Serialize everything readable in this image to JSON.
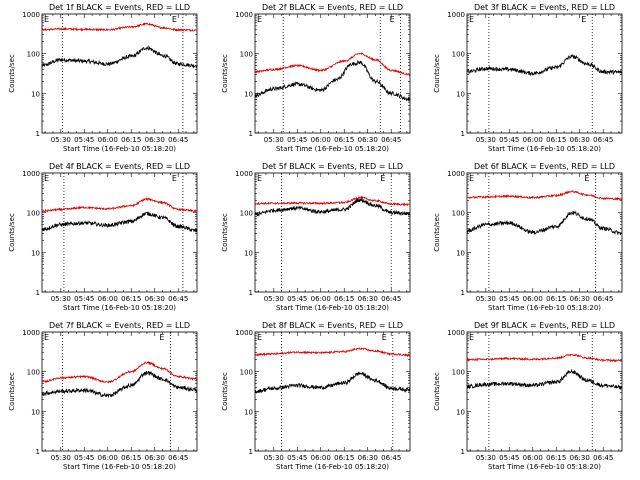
{
  "chart_data": {
    "type": "line",
    "grid": false,
    "y_scale": "log",
    "ylim": [
      1,
      1000
    ],
    "ylabel": "Counts/sec",
    "xlabel": "Start Time (16-Feb-10 05:18:20)",
    "x_tick_labels": [
      "05:30",
      "05:45",
      "06:00",
      "06:15",
      "06:30",
      "06:45"
    ],
    "y_tick_labels": [
      "1",
      "10",
      "100",
      "1000"
    ],
    "marker_letters": [
      "E",
      "E"
    ],
    "series_colors": {
      "events": "#000000",
      "lld": "#dd0000"
    },
    "panels": [
      {
        "title": "Det 1f BLACK = Events, RED = LLD",
        "vlines": [
          "05:31",
          "06:48"
        ],
        "series": [
          {
            "key": "events",
            "x": [
              "05:18",
              "05:30",
              "05:45",
              "06:00",
              "06:15",
              "06:25",
              "06:35",
              "06:45",
              "06:57"
            ],
            "y": [
              50,
              70,
              65,
              55,
              85,
              140,
              90,
              55,
              50
            ]
          },
          {
            "key": "lld",
            "x": [
              "05:18",
              "05:30",
              "05:45",
              "06:00",
              "06:15",
              "06:25",
              "06:35",
              "06:45",
              "06:57"
            ],
            "y": [
              400,
              420,
              410,
              400,
              470,
              560,
              450,
              400,
              390
            ]
          }
        ]
      },
      {
        "title": "Det 2f BLACK = Events, RED = LLD",
        "vlines": [
          "05:36",
          "06:38",
          "06:51"
        ],
        "series": [
          {
            "key": "events",
            "x": [
              "05:18",
              "05:30",
              "05:45",
              "06:00",
              "06:10",
              "06:20",
              "06:25",
              "06:35",
              "06:45",
              "06:57"
            ],
            "y": [
              9,
              13,
              17,
              12,
              22,
              55,
              60,
              20,
              10,
              7
            ]
          },
          {
            "key": "lld",
            "x": [
              "05:18",
              "05:30",
              "05:45",
              "06:00",
              "06:15",
              "06:25",
              "06:35",
              "06:45",
              "06:57"
            ],
            "y": [
              35,
              40,
              50,
              38,
              65,
              100,
              70,
              38,
              30
            ]
          }
        ]
      },
      {
        "title": "Det 3f BLACK = Events, RED = LLD",
        "vlines": [
          "05:32",
          "06:38"
        ],
        "series": [
          {
            "key": "events",
            "x": [
              "05:18",
              "05:30",
              "05:45",
              "06:00",
              "06:15",
              "06:25",
              "06:35",
              "06:45",
              "06:57"
            ],
            "y": [
              35,
              42,
              40,
              32,
              45,
              85,
              55,
              35,
              34
            ]
          }
        ]
      },
      {
        "title": "Det 4f BLACK = Events, RED = LLD",
        "vlines": [
          "05:32",
          "06:48"
        ],
        "series": [
          {
            "key": "events",
            "x": [
              "05:18",
              "05:30",
              "05:45",
              "06:00",
              "06:15",
              "06:25",
              "06:35",
              "06:45",
              "06:57"
            ],
            "y": [
              38,
              50,
              55,
              48,
              60,
              95,
              75,
              45,
              35
            ]
          },
          {
            "key": "lld",
            "x": [
              "05:18",
              "05:30",
              "05:45",
              "06:00",
              "06:15",
              "06:25",
              "06:35",
              "06:45",
              "06:57"
            ],
            "y": [
              110,
              120,
              135,
              125,
              150,
              220,
              180,
              120,
              110
            ]
          }
        ]
      },
      {
        "title": "Det 5f BLACK = Events, RED = LLD",
        "vlines": [
          "05:35",
          "06:45"
        ],
        "series": [
          {
            "key": "events",
            "x": [
              "05:18",
              "05:30",
              "05:45",
              "06:00",
              "06:15",
              "06:25",
              "06:35",
              "06:45",
              "06:57"
            ],
            "y": [
              90,
              115,
              130,
              105,
              120,
              210,
              150,
              100,
              95
            ]
          },
          {
            "key": "lld",
            "x": [
              "05:18",
              "05:30",
              "05:45",
              "06:00",
              "06:15",
              "06:25",
              "06:35",
              "06:45",
              "06:57"
            ],
            "y": [
              170,
              172,
              175,
              172,
              180,
              240,
              200,
              165,
              160
            ]
          }
        ]
      },
      {
        "title": "Det 6f BLACK = Events, RED = LLD",
        "vlines": [
          "05:32",
          "06:40"
        ],
        "series": [
          {
            "key": "events",
            "x": [
              "05:18",
              "05:30",
              "05:45",
              "06:00",
              "06:15",
              "06:25",
              "06:35",
              "06:45",
              "06:57"
            ],
            "y": [
              35,
              50,
              55,
              32,
              45,
              100,
              70,
              40,
              30
            ]
          },
          {
            "key": "lld",
            "x": [
              "05:18",
              "05:30",
              "05:45",
              "06:00",
              "06:15",
              "06:25",
              "06:35",
              "06:45",
              "06:57"
            ],
            "y": [
              240,
              250,
              260,
              240,
              270,
              340,
              280,
              230,
              220
            ]
          }
        ]
      },
      {
        "title": "Det 7f BLACK = Events, RED = LLD",
        "vlines": [
          "05:31",
          "06:40"
        ],
        "series": [
          {
            "key": "events",
            "x": [
              "05:18",
              "05:30",
              "05:45",
              "06:00",
              "06:15",
              "06:25",
              "06:35",
              "06:45",
              "06:57"
            ],
            "y": [
              28,
              32,
              34,
              25,
              45,
              95,
              65,
              40,
              35
            ]
          },
          {
            "key": "lld",
            "x": [
              "05:18",
              "05:30",
              "05:45",
              "06:00",
              "06:15",
              "06:25",
              "06:35",
              "06:45",
              "06:57"
            ],
            "y": [
              55,
              70,
              75,
              55,
              100,
              170,
              120,
              75,
              65
            ]
          }
        ]
      },
      {
        "title": "Det 8f BLACK = Events, RED = LLD",
        "vlines": [
          "05:35",
          "06:46"
        ],
        "series": [
          {
            "key": "events",
            "x": [
              "05:18",
              "05:30",
              "05:45",
              "06:00",
              "06:15",
              "06:25",
              "06:35",
              "06:45",
              "06:57"
            ],
            "y": [
              32,
              38,
              45,
              40,
              52,
              90,
              60,
              38,
              35
            ]
          },
          {
            "key": "lld",
            "x": [
              "05:18",
              "05:30",
              "05:45",
              "06:00",
              "06:15",
              "06:25",
              "06:35",
              "06:45",
              "06:57"
            ],
            "y": [
              270,
              280,
              310,
              300,
              320,
              380,
              330,
              280,
              260
            ]
          }
        ]
      },
      {
        "title": "Det 9f BLACK = Events, RED = LLD",
        "vlines": [
          "05:32",
          "06:38"
        ],
        "series": [
          {
            "key": "events",
            "x": [
              "05:18",
              "05:30",
              "05:45",
              "06:00",
              "06:15",
              "06:25",
              "06:35",
              "06:45",
              "06:57"
            ],
            "y": [
              42,
              48,
              50,
              45,
              55,
              100,
              60,
              45,
              40
            ]
          },
          {
            "key": "lld",
            "x": [
              "05:18",
              "05:30",
              "05:45",
              "06:00",
              "06:15",
              "06:25",
              "06:35",
              "06:45",
              "06:57"
            ],
            "y": [
              200,
              205,
              215,
              205,
              220,
              270,
              220,
              195,
              190
            ]
          }
        ]
      }
    ]
  }
}
